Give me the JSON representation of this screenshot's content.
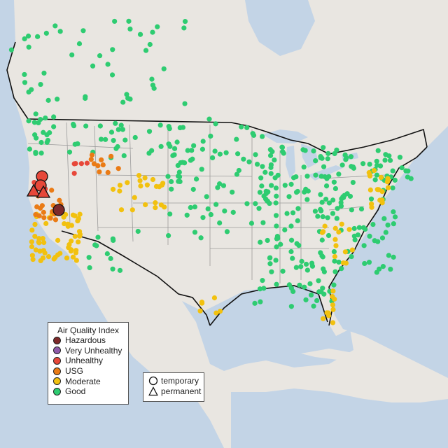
{
  "legend": {
    "title": "Air Quality Index",
    "categories": [
      {
        "name": "Hazardous",
        "color": "#7e2a2a"
      },
      {
        "name": "Very Unhealthy",
        "color": "#8e5aa9"
      },
      {
        "name": "Unhealthy",
        "color": "#e7483a"
      },
      {
        "name": "USG",
        "color": "#ea7b15"
      },
      {
        "name": "Moderate",
        "color": "#f2c10f"
      },
      {
        "name": "Good",
        "color": "#2ecc71"
      }
    ]
  },
  "site_legend": {
    "temporary": "temporary",
    "permanent": "permanent"
  },
  "colors": {
    "land": "#e9e6e1",
    "water": "#c3d4e6",
    "state_border": "#9a9a9a",
    "country_border": "#111111",
    "no_data": "#bbbbbb"
  }
}
